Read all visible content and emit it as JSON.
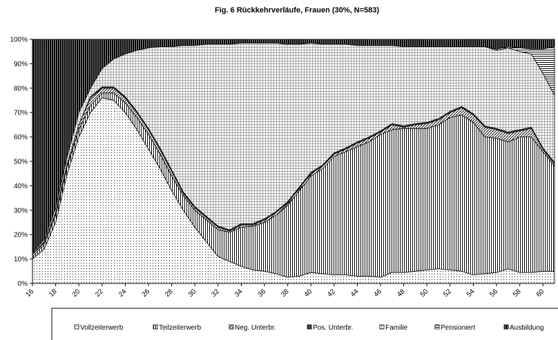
{
  "chart_data": {
    "type": "stacked_area",
    "title": "Fig. 6   Rückkehrverläufe, Frauen (30%, N=583)",
    "x": [
      16,
      17,
      18,
      19,
      20,
      21,
      22,
      23,
      24,
      25,
      26,
      27,
      28,
      29,
      30,
      31,
      32,
      33,
      34,
      35,
      36,
      37,
      38,
      39,
      40,
      41,
      42,
      43,
      44,
      45,
      46,
      47,
      48,
      49,
      50,
      51,
      52,
      53,
      54,
      55,
      56,
      57,
      58,
      59,
      60,
      61
    ],
    "xlim": [
      16,
      61
    ],
    "xticks": [
      16,
      18,
      20,
      22,
      24,
      26,
      28,
      30,
      32,
      34,
      36,
      38,
      40,
      42,
      44,
      46,
      48,
      50,
      52,
      54,
      56,
      58,
      60
    ],
    "ylim": [
      0,
      100
    ],
    "yticks": [
      {
        "value": 0,
        "label": "0%"
      },
      {
        "value": 10,
        "label": "10%"
      },
      {
        "value": 20,
        "label": "20%"
      },
      {
        "value": 30,
        "label": "30%"
      },
      {
        "value": 40,
        "label": "40%"
      },
      {
        "value": 50,
        "label": "50%"
      },
      {
        "value": 60,
        "label": "60%"
      },
      {
        "value": 70,
        "label": "70%"
      },
      {
        "value": 80,
        "label": "80%"
      },
      {
        "value": 90,
        "label": "90%"
      },
      {
        "value": 100,
        "label": "100%"
      }
    ],
    "legend": "bottom",
    "series": [
      {
        "name": "Vollzeiterwerb",
        "color": "#000000",
        "pattern": "dots",
        "values": [
          10,
          14,
          25,
          45,
          60,
          70,
          76,
          75,
          70,
          63,
          55,
          47,
          38,
          30,
          23,
          17,
          11,
          9,
          7,
          5.5,
          5,
          4,
          2.5,
          3,
          4.5,
          4,
          3.5,
          3.5,
          3,
          3,
          2.5,
          4.5,
          4.5,
          5,
          5.5,
          6,
          5.5,
          5,
          3.5,
          4,
          4.5,
          6,
          4.5,
          4.5,
          5,
          5
        ]
      },
      {
        "name": "Teilzeiterwerb",
        "color": "#000000",
        "pattern": "vlines",
        "values": [
          1,
          2,
          3,
          3,
          3,
          3,
          2,
          3,
          4,
          5,
          6,
          6,
          6,
          6,
          7,
          9,
          11,
          12,
          16,
          18,
          20,
          24,
          29.5,
          35,
          39.5,
          43,
          48.5,
          50.5,
          53,
          55,
          58.5,
          58.5,
          59,
          58.5,
          58,
          59,
          62.5,
          64,
          62.5,
          56,
          55,
          52,
          55.5,
          55.5,
          49,
          43
        ]
      },
      {
        "name": "Neg. Unterbr.",
        "color": "#000000",
        "pattern": "diag",
        "values": [
          1,
          1,
          1,
          1,
          2,
          3,
          2,
          2,
          2,
          2,
          2,
          2,
          2,
          1,
          1,
          1,
          1,
          0.5,
          1,
          0.5,
          1,
          1,
          1,
          1,
          1,
          1,
          1,
          1,
          1.5,
          1.5,
          1,
          2,
          0.5,
          1.5,
          2,
          2,
          2,
          3,
          3,
          4,
          3.5,
          3.5,
          2.5,
          3.5,
          1,
          1
        ]
      },
      {
        "name": "Pos. Unterbr.",
        "color": "#000000",
        "pattern": "dense",
        "values": [
          0,
          0,
          0,
          0,
          0,
          0.5,
          0.5,
          0.5,
          0.5,
          0.5,
          0.5,
          0.5,
          0.5,
          0.5,
          0.5,
          0.5,
          0.5,
          0.5,
          0.5,
          0.5,
          0.5,
          0.5,
          0.5,
          0.5,
          0.5,
          0.5,
          0.5,
          0.5,
          0.5,
          0.5,
          0.5,
          0.5,
          0.5,
          0.5,
          0.5,
          0.5,
          0.5,
          0.5,
          0.5,
          0.5,
          0.5,
          0.5,
          0.5,
          0.5,
          0.5,
          0.5
        ]
      },
      {
        "name": "Familie",
        "color": "#000000",
        "pattern": "grid",
        "values": [
          0.5,
          1,
          2,
          3,
          5,
          3.5,
          7.5,
          11.5,
          17.5,
          25,
          33,
          41.5,
          50.5,
          60,
          66,
          70.5,
          74.5,
          76,
          74,
          74,
          72,
          69,
          64.5,
          58.5,
          53,
          49.5,
          44.5,
          42.5,
          39.5,
          37.5,
          35,
          32,
          32.5,
          31.5,
          31,
          29.5,
          26.5,
          24.5,
          27.5,
          32.5,
          32,
          34.5,
          32,
          30,
          30.5,
          27.5
        ]
      },
      {
        "name": "Pensioniert",
        "color": "#000000",
        "pattern": "hlines",
        "values": [
          0,
          0,
          0,
          0,
          0,
          0,
          0,
          0,
          0,
          0,
          0,
          0,
          0,
          0,
          0,
          0,
          0,
          0,
          0,
          0,
          0,
          0,
          0,
          0,
          0,
          0,
          0,
          0,
          0,
          0,
          0,
          0,
          0,
          0,
          0,
          0,
          0,
          0,
          0,
          0,
          0.5,
          0.5,
          1.5,
          2,
          10,
          20
        ]
      },
      {
        "name": "Ausbildung",
        "color": "#000000",
        "pattern": "black",
        "values": [
          87.5,
          82,
          69,
          48,
          30,
          20,
          12,
          8,
          6,
          4.5,
          3.5,
          3,
          3,
          2.5,
          2.5,
          2,
          2,
          2,
          1.5,
          1.5,
          1.5,
          1.5,
          2,
          2,
          1.5,
          2,
          2,
          2,
          2.5,
          2.5,
          2.5,
          2.5,
          3,
          3,
          3,
          3,
          3,
          3,
          3,
          3,
          4,
          3,
          3.5,
          4,
          4,
          3
        ]
      }
    ]
  }
}
